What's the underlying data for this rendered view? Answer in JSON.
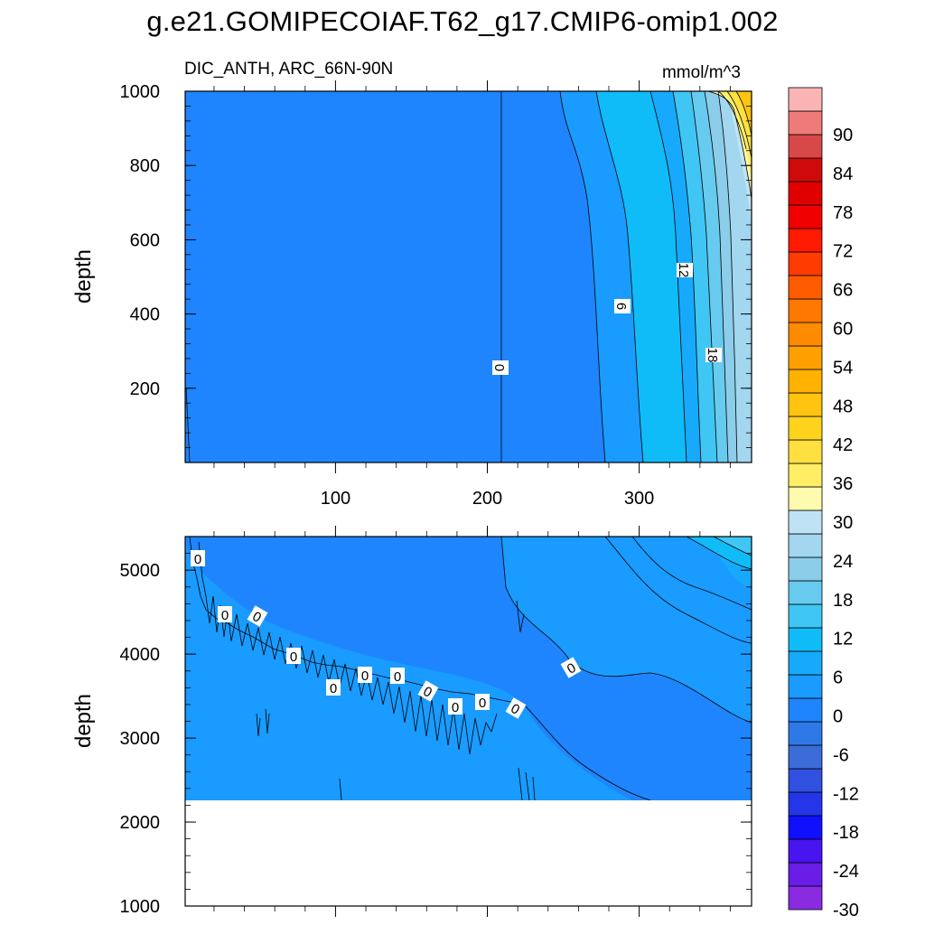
{
  "title": "g.e21.GOMIPECOIAF.T62_g17.CMIP6-omip1.002",
  "subtitle_left": "DIC_ANTH, ARC_66N-90N",
  "units": "mmol/m^3",
  "colors": {
    "contour_levels": [
      "#8a2be2",
      "#6a1de6",
      "#4814ef",
      "#1010ff",
      "#2436e8",
      "#3050e0",
      "#3b6cd8",
      "#2f78e8",
      "#1e85ff",
      "#199bff",
      "#17aafc",
      "#10bcf8",
      "#3fc6f4",
      "#67cbef",
      "#8ccdea",
      "#a3d6ef",
      "#bfe3f5",
      "#fffbae",
      "#ffee66",
      "#ffe040",
      "#ffd21e",
      "#ffc40f",
      "#ffb200",
      "#ffa000",
      "#ff8c00",
      "#ff7800",
      "#ff5c00",
      "#ff3b00",
      "#ff1a00",
      "#f00000",
      "#e00000",
      "#cf0a0a",
      "#d84848",
      "#ef7a7a",
      "#fbb4b4"
    ]
  },
  "chart_data": [
    {
      "type": "contour",
      "panel": "upper",
      "ylabel": "depth",
      "xlabel": "",
      "x_ticks": [
        100,
        200,
        300
      ],
      "y_ticks": [
        200,
        400,
        600,
        800,
        1000
      ],
      "xlim": [
        1,
        374
      ],
      "ylim": [
        1000,
        0
      ],
      "contour_labels": [
        "0",
        "6",
        "12",
        "18"
      ]
    },
    {
      "type": "contour",
      "panel": "lower",
      "ylabel": "depth",
      "xlabel": "",
      "x_ticks": [
        100,
        200,
        300
      ],
      "y_ticks": [
        1000,
        2000,
        3000,
        4000,
        5000
      ],
      "xlim": [
        1,
        374
      ],
      "ylim": [
        5400,
        1000
      ],
      "contour_labels": [
        "0",
        "0",
        "0",
        "0",
        "0",
        "0",
        "0",
        "0",
        "0",
        "0",
        "0",
        "0",
        "0",
        "0"
      ]
    }
  ],
  "colorbar": {
    "labels": [
      "90",
      "84",
      "78",
      "72",
      "66",
      "60",
      "54",
      "48",
      "42",
      "36",
      "30",
      "24",
      "18",
      "12",
      "6",
      "0",
      "-6",
      "-12",
      "-18",
      "-24",
      "-30"
    ]
  }
}
